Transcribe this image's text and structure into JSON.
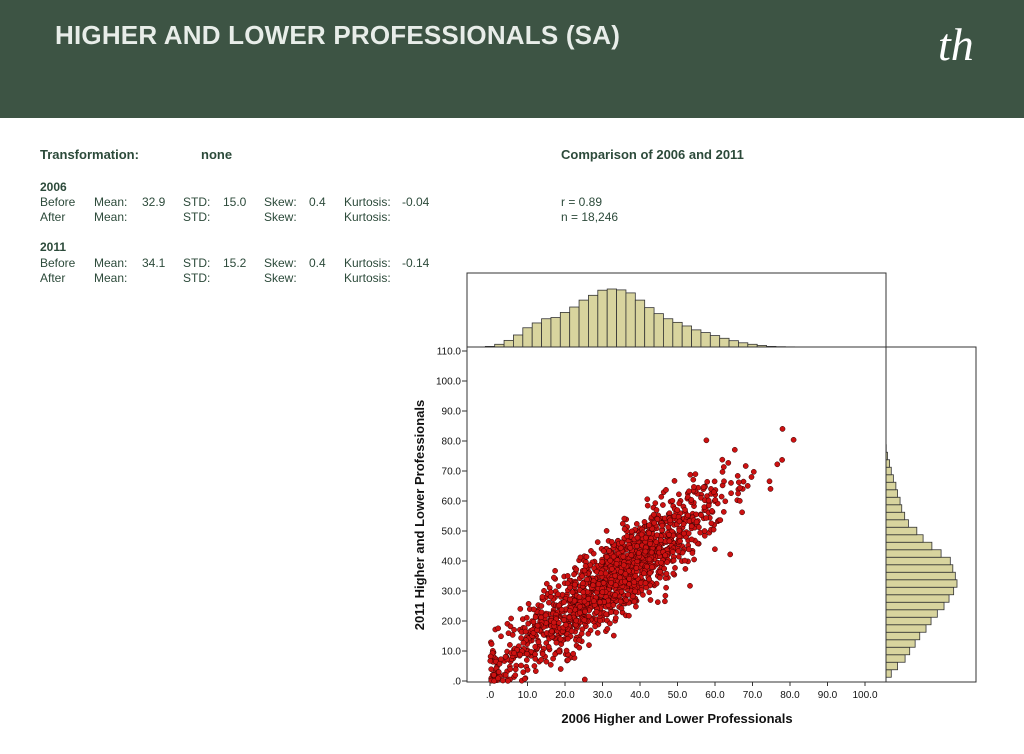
{
  "header": {
    "title": "HIGHER AND LOWER PROFESSIONALS (SA)",
    "logo_text": "th"
  },
  "stats": {
    "transformation_label": "Transformation:",
    "transformation_value": "none",
    "comparison_title": "Comparison of 2006 and 2011",
    "r_text": "r  = 0.89",
    "n_text": "n = 18,246",
    "years": [
      {
        "year": "2006",
        "before": {
          "label": "Before",
          "mean_label": "Mean:",
          "mean": "32.9",
          "std_label": "STD:",
          "std": "15.0",
          "skew_label": "Skew:",
          "skew": "0.4",
          "kurt_label": "Kurtosis:",
          "kurt": "-0.04"
        },
        "after": {
          "label": "After",
          "mean_label": "Mean:",
          "std_label": "STD:",
          "skew_label": "Skew:",
          "kurt_label": "Kurtosis:"
        }
      },
      {
        "year": "2011",
        "before": {
          "label": "Before",
          "mean_label": "Mean:",
          "mean": "34.1",
          "std_label": "STD:",
          "std": "15.2",
          "skew_label": "Skew:",
          "skew": "0.4",
          "kurt_label": "Kurtosis:",
          "kurt": "-0.14"
        },
        "after": {
          "label": "After",
          "mean_label": "Mean:",
          "std_label": "STD:",
          "skew_label": "Skew:",
          "kurt_label": "Kurtosis:"
        }
      }
    ]
  },
  "chart_data": {
    "type": "scatter",
    "xlabel": "2006 Higher and Lower Professionals",
    "ylabel": "2011 Higher and Lower Professionals",
    "xlim": [
      0,
      110
    ],
    "ylim": [
      0,
      110
    ],
    "x_ticks": [
      ".0",
      "10.0",
      "20.0",
      "30.0",
      "40.0",
      "50.0",
      "60.0",
      "70.0",
      "80.0",
      "90.0",
      "100.0"
    ],
    "y_ticks": [
      ".0",
      "10.0",
      "20.0",
      "30.0",
      "40.0",
      "50.0",
      "60.0",
      "70.0",
      "80.0",
      "90.0",
      "100.0",
      "110.0"
    ],
    "point_color": "#cc1111",
    "point_count": 18246,
    "r": 0.89,
    "x_mean": 32.9,
    "x_std": 15.0,
    "y_mean": 34.1,
    "y_std": 15.2,
    "histogram_color": "#d8d49e",
    "marginal_x_hist": [
      {
        "bin": 0,
        "count": 0.2
      },
      {
        "bin": 2.5,
        "count": 0.9
      },
      {
        "bin": 5,
        "count": 2.2
      },
      {
        "bin": 7.5,
        "count": 4.0
      },
      {
        "bin": 10,
        "count": 6.4
      },
      {
        "bin": 12.5,
        "count": 8.0
      },
      {
        "bin": 15,
        "count": 9.4
      },
      {
        "bin": 17.5,
        "count": 9.8
      },
      {
        "bin": 20,
        "count": 11.5
      },
      {
        "bin": 22.5,
        "count": 13.3
      },
      {
        "bin": 25,
        "count": 15.6
      },
      {
        "bin": 27.5,
        "count": 17.2
      },
      {
        "bin": 30,
        "count": 18.9
      },
      {
        "bin": 32.5,
        "count": 19.3
      },
      {
        "bin": 35,
        "count": 19.0
      },
      {
        "bin": 37.5,
        "count": 18.0
      },
      {
        "bin": 40,
        "count": 15.6
      },
      {
        "bin": 42.5,
        "count": 13.1
      },
      {
        "bin": 45,
        "count": 11.1
      },
      {
        "bin": 47.5,
        "count": 9.4
      },
      {
        "bin": 50,
        "count": 8.2
      },
      {
        "bin": 52.5,
        "count": 7.0
      },
      {
        "bin": 55,
        "count": 5.7
      },
      {
        "bin": 57.5,
        "count": 4.8
      },
      {
        "bin": 60,
        "count": 3.8
      },
      {
        "bin": 62.5,
        "count": 2.9
      },
      {
        "bin": 65,
        "count": 2.1
      },
      {
        "bin": 67.5,
        "count": 1.4
      },
      {
        "bin": 70,
        "count": 0.9
      },
      {
        "bin": 72.5,
        "count": 0.5
      },
      {
        "bin": 75,
        "count": 0.2
      },
      {
        "bin": 77.5,
        "count": 0.1
      },
      {
        "bin": 80,
        "count": 0.05
      },
      {
        "bin": 82.5,
        "count": 0.03
      },
      {
        "bin": 85,
        "count": 0.02
      },
      {
        "bin": 87.5,
        "count": 0.02
      }
    ],
    "marginal_y_hist": [
      {
        "bin": 2.5,
        "count": 1.5
      },
      {
        "bin": 5,
        "count": 3.0
      },
      {
        "bin": 7.5,
        "count": 4.8
      },
      {
        "bin": 10,
        "count": 5.9
      },
      {
        "bin": 12.5,
        "count": 7.2
      },
      {
        "bin": 15,
        "count": 8.3
      },
      {
        "bin": 17.5,
        "count": 9.8
      },
      {
        "bin": 20,
        "count": 11.0
      },
      {
        "bin": 22.5,
        "count": 12.5
      },
      {
        "bin": 25,
        "count": 14.1
      },
      {
        "bin": 27.5,
        "count": 15.3
      },
      {
        "bin": 30,
        "count": 16.4
      },
      {
        "bin": 32.5,
        "count": 17.2
      },
      {
        "bin": 35,
        "count": 16.8
      },
      {
        "bin": 37.5,
        "count": 16.2
      },
      {
        "bin": 40,
        "count": 15.6
      },
      {
        "bin": 42.5,
        "count": 13.4
      },
      {
        "bin": 45,
        "count": 11.2
      },
      {
        "bin": 47.5,
        "count": 9.1
      },
      {
        "bin": 50,
        "count": 7.6
      },
      {
        "bin": 52.5,
        "count": 5.6
      },
      {
        "bin": 55,
        "count": 4.7
      },
      {
        "bin": 57.5,
        "count": 4.0
      },
      {
        "bin": 60,
        "count": 3.6
      },
      {
        "bin": 62.5,
        "count": 3.0
      },
      {
        "bin": 65,
        "count": 2.6
      },
      {
        "bin": 67.5,
        "count": 2.0
      },
      {
        "bin": 70,
        "count": 1.5
      },
      {
        "bin": 72.5,
        "count": 1.1
      },
      {
        "bin": 75,
        "count": 0.6
      },
      {
        "bin": 77.5,
        "count": 0.3
      },
      {
        "bin": 80,
        "count": 0.2
      },
      {
        "bin": 82.5,
        "count": 0.1
      }
    ]
  }
}
